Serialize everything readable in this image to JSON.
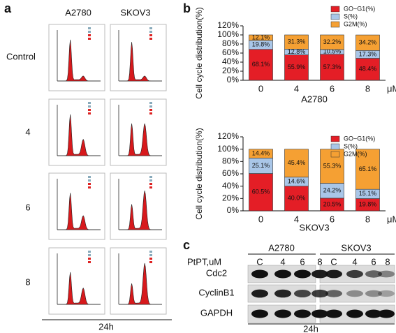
{
  "figure": {
    "panel_a": {
      "label": "a",
      "columns": [
        "A2780",
        "SKOV3"
      ],
      "rows": [
        "Control",
        "4",
        "6",
        "8"
      ],
      "footer": "24h"
    },
    "panel_b": {
      "label": "b"
    },
    "panel_c": {
      "label": "c",
      "groups": [
        "A2780",
        "SKOV3"
      ],
      "dose_label": "PtPT,uM",
      "lanes": [
        "C",
        "4",
        "6",
        "8",
        "C",
        "4",
        "6",
        "8"
      ],
      "proteins": [
        "Cdc2",
        "CyclinB1",
        "GAPDH"
      ],
      "footer": "24h"
    }
  },
  "chart_data": [
    {
      "type": "stacked_bar",
      "title": "A2780",
      "y_label": "Cell cycle distribution(%)",
      "x_label": "μM",
      "categories": [
        "0",
        "4",
        "6",
        "8"
      ],
      "legend": "top-right",
      "ylim": [
        0,
        120
      ],
      "yticks": [
        {
          "value": 0,
          "label": "0%"
        },
        {
          "value": 20,
          "label": "20%"
        },
        {
          "value": 40,
          "label": "40%"
        },
        {
          "value": 60,
          "label": "60%"
        },
        {
          "value": 80,
          "label": "80%"
        },
        {
          "value": 100,
          "label": "100%"
        },
        {
          "value": 120,
          "label": "120%"
        }
      ],
      "series": [
        {
          "name": "GO~G1(%)",
          "color": "#e41e26",
          "values": [
            68.1,
            55.9,
            57.3,
            48.4
          ],
          "value_labels": [
            "68.1%",
            "55.9%",
            "57.3%",
            "48.4%"
          ]
        },
        {
          "name": "S(%)",
          "color": "#a9c6e8",
          "values": [
            19.8,
            12.8,
            10.5,
            17.3
          ],
          "value_labels": [
            "19.8%",
            "12.8%",
            "10.5%",
            "17.3%"
          ]
        },
        {
          "name": "G2M(%)",
          "color": "#f5a033",
          "values": [
            12.1,
            31.3,
            32.2,
            34.2
          ],
          "value_labels": [
            "12.1%",
            "31.3%",
            "32.2%",
            "34.2%"
          ]
        }
      ]
    },
    {
      "type": "stacked_bar",
      "title": "SKOV3",
      "y_label": "Cell cycle distribution(%)",
      "x_label": "μM",
      "categories": [
        "0",
        "4",
        "6",
        "8"
      ],
      "legend": "top-right",
      "ylim": [
        0,
        120
      ],
      "yticks": [
        {
          "value": 0,
          "label": "0%"
        },
        {
          "value": 20,
          "label": "20%"
        },
        {
          "value": 40,
          "label": "40%"
        },
        {
          "value": 60,
          "label": "60%"
        },
        {
          "value": 80,
          "label": "80%"
        },
        {
          "value": 100,
          "label": "100%"
        },
        {
          "value": 120,
          "label": "120%"
        }
      ],
      "series": [
        {
          "name": "GO~G1(%)",
          "color": "#e41e26",
          "values": [
            60.5,
            40.0,
            20.5,
            19.8
          ],
          "value_labels": [
            "60.5%",
            "40.0%",
            "20.5%",
            "19.8%"
          ]
        },
        {
          "name": "S(%)",
          "color": "#a9c6e8",
          "values": [
            25.1,
            14.6,
            24.2,
            15.1
          ],
          "value_labels": [
            "25.1%",
            "14.6%",
            "24.2%",
            "15.1%"
          ]
        },
        {
          "name": "G2M(%)",
          "color": "#f5a033",
          "values": [
            14.4,
            45.4,
            55.3,
            65.1
          ],
          "value_labels": [
            "14.4%",
            "45.4%",
            "55.3%",
            "65.1%"
          ]
        }
      ]
    }
  ]
}
